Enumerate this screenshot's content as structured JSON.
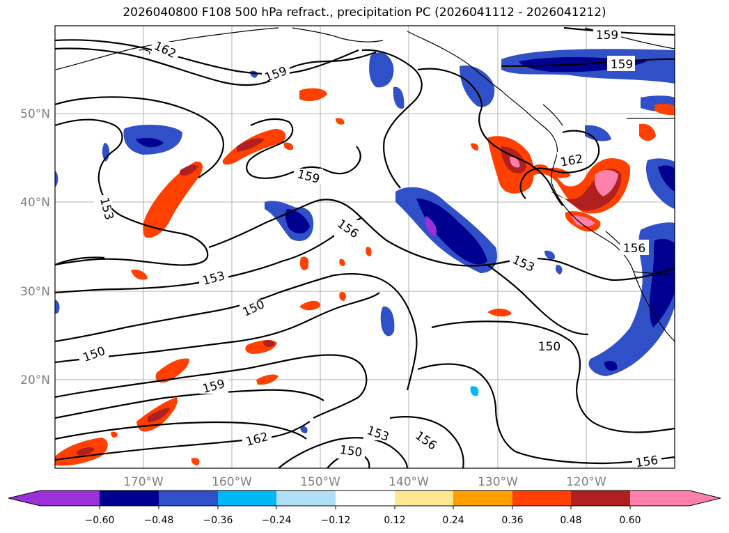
{
  "title": "2026040800 F108 500 hPa refract., precipitation PC (2026041112 - 2026041212)",
  "map": {
    "lat_labels": [
      "50°N",
      "40°N",
      "30°N",
      "20°N"
    ],
    "lon_labels": [
      "170°W",
      "160°W",
      "150°W",
      "140°W",
      "130°W",
      "120°W"
    ],
    "contour_labels": [
      "162",
      "159",
      "162",
      "159",
      "159",
      "159",
      "153",
      "156",
      "153",
      "153",
      "150",
      "150",
      "159",
      "162",
      "153",
      "156",
      "150",
      "150",
      "156",
      "156"
    ]
  },
  "colorbar": {
    "colors": [
      "#9b30d9",
      "#000090",
      "#3050c8",
      "#00b8f8",
      "#b0e0f8",
      "#ffffff",
      "#ffe890",
      "#ffa000",
      "#ff4000",
      "#b02020",
      "#ff80a8"
    ],
    "labels": [
      "−0.60",
      "−0.48",
      "−0.36",
      "−0.24",
      "−0.12",
      "0.12",
      "0.24",
      "0.36",
      "0.48",
      "0.60"
    ]
  }
}
